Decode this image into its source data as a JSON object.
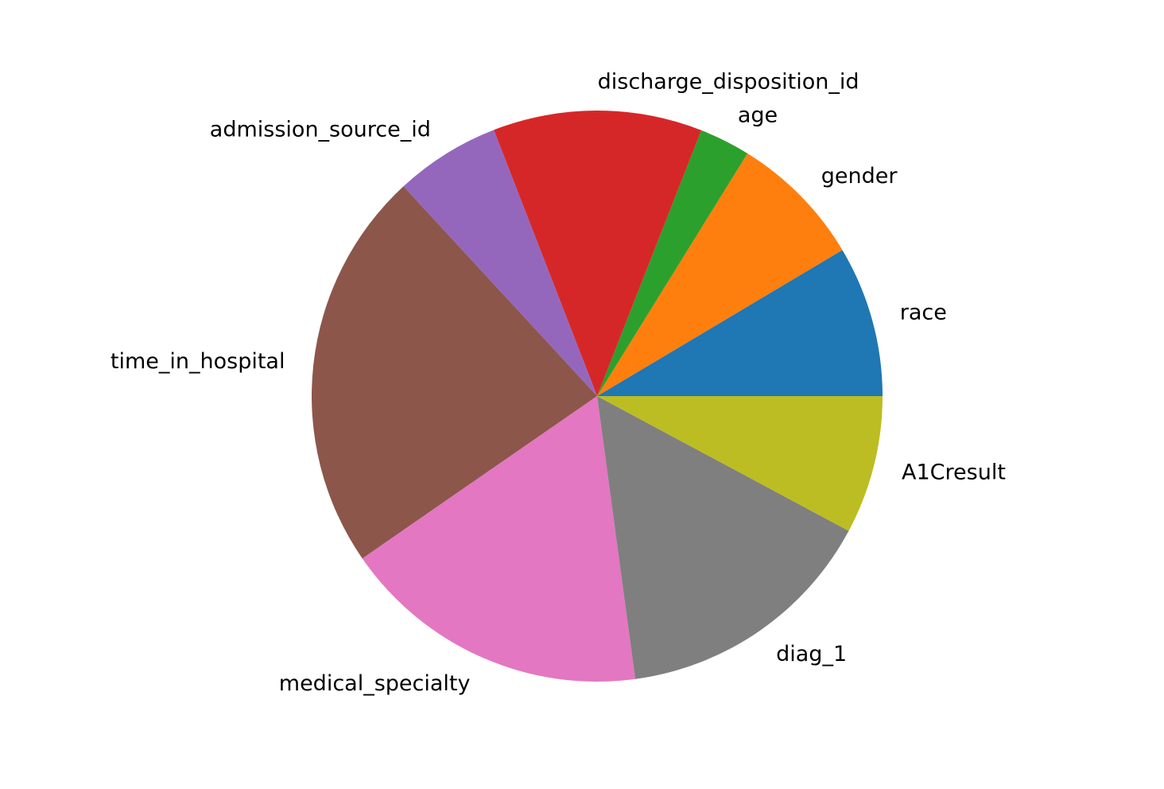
{
  "chart_data": {
    "type": "pie",
    "title": "",
    "start_angle_deg": 0,
    "direction": "counterclockwise",
    "slices": [
      {
        "label": "race",
        "value": 8.3,
        "color": "#1f77b4"
      },
      {
        "label": "gender",
        "value": 7.4,
        "color": "#ff7f0e"
      },
      {
        "label": "age",
        "value": 2.8,
        "color": "#2ca02c"
      },
      {
        "label": "discharge_disposition_id",
        "value": 11.5,
        "color": "#d62728"
      },
      {
        "label": "admission_source_id",
        "value": 5.8,
        "color": "#9467bd"
      },
      {
        "label": "time_in_hospital",
        "value": 22.1,
        "color": "#8c564b"
      },
      {
        "label": "medical_specialty",
        "value": 17.0,
        "color": "#e377c2"
      },
      {
        "label": "diag_1",
        "value": 14.6,
        "color": "#7f7f7f"
      },
      {
        "label": "A1Cresult",
        "value": 7.6,
        "color": "#bcbd22"
      }
    ]
  }
}
